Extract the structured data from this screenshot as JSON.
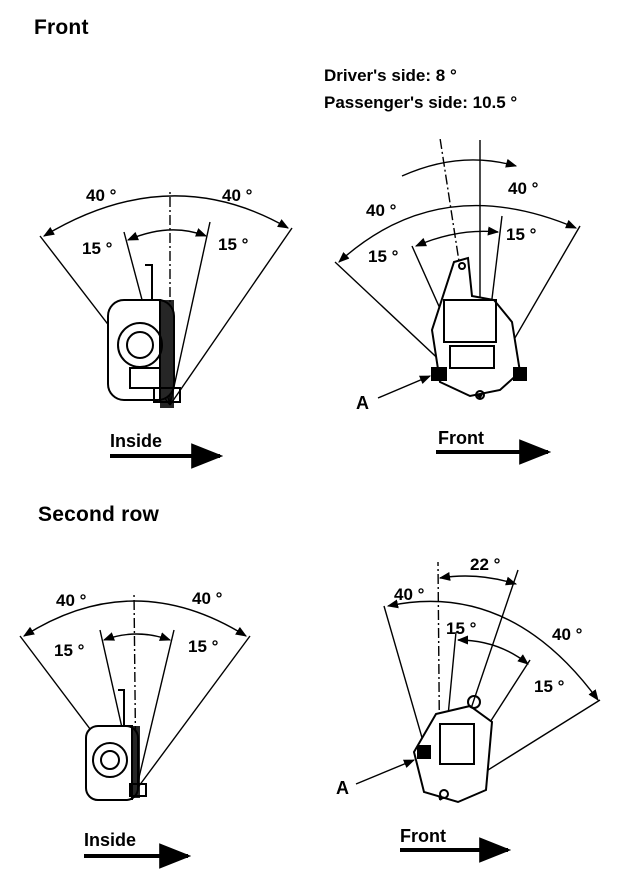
{
  "headings": {
    "front": "Front",
    "second_row": "Second row"
  },
  "notes": {
    "driver": "Driver's side: 8 °",
    "passenger": "Passenger's side: 10.5 °"
  },
  "angles": {
    "outer": "40 °",
    "inner": "15 °",
    "tilt": "22 °"
  },
  "direction_labels": {
    "inside": "Inside",
    "front": "Front"
  },
  "callouts": {
    "a": "A"
  }
}
